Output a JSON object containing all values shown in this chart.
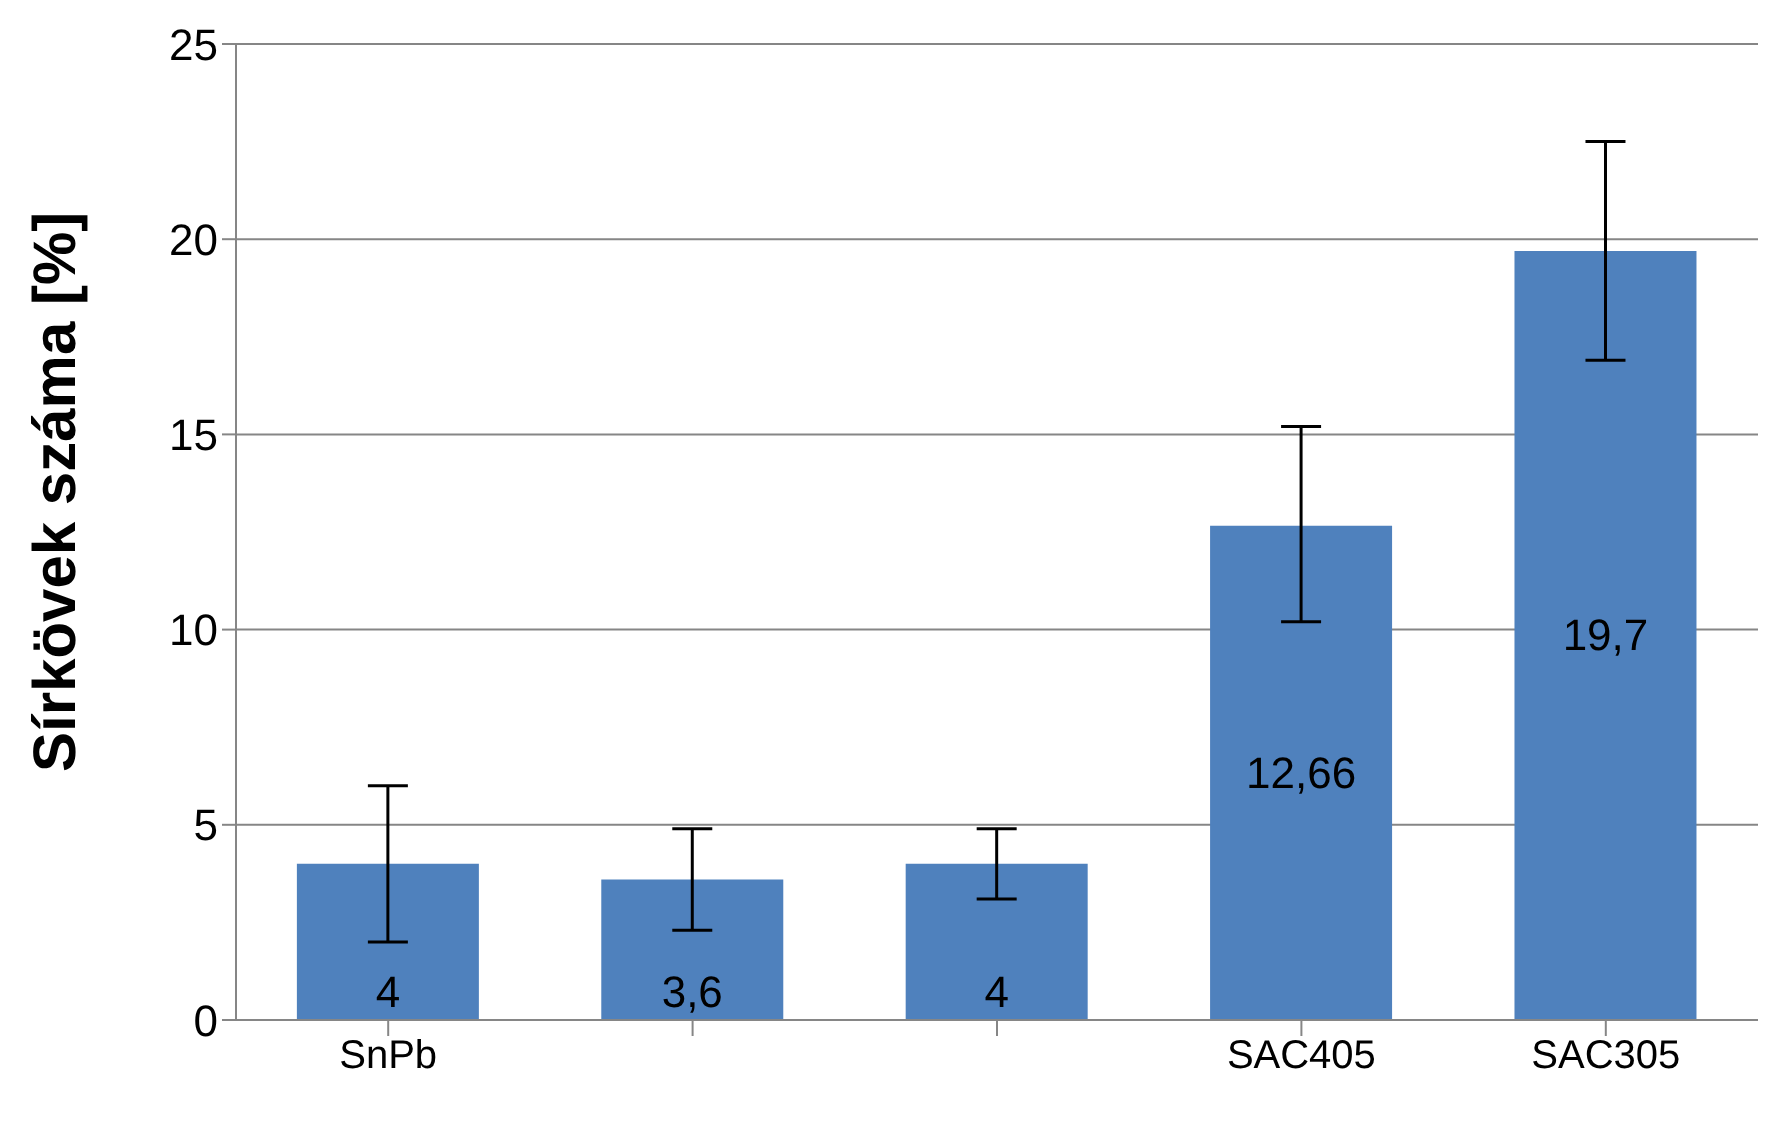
{
  "chart_data": {
    "type": "bar",
    "ylabel": "Sírkövek száma [%]",
    "categories": [
      "SnPb",
      null,
      null,
      "SAC405",
      "SAC305"
    ],
    "values": [
      4,
      3.6,
      4,
      12.66,
      19.7
    ],
    "value_labels": [
      "4",
      "3,6",
      "4",
      "12,66",
      "19,7"
    ],
    "errors": [
      [
        2,
        6
      ],
      [
        2.3,
        4.9
      ],
      [
        3.1,
        4.9
      ],
      [
        10.2,
        15.2
      ],
      [
        16.9,
        22.5
      ]
    ],
    "color": "#4f81bd",
    "ylim": [
      0,
      25
    ],
    "yticks": [
      0,
      5,
      10,
      15,
      20,
      25
    ],
    "grid": "y",
    "legend": false
  }
}
